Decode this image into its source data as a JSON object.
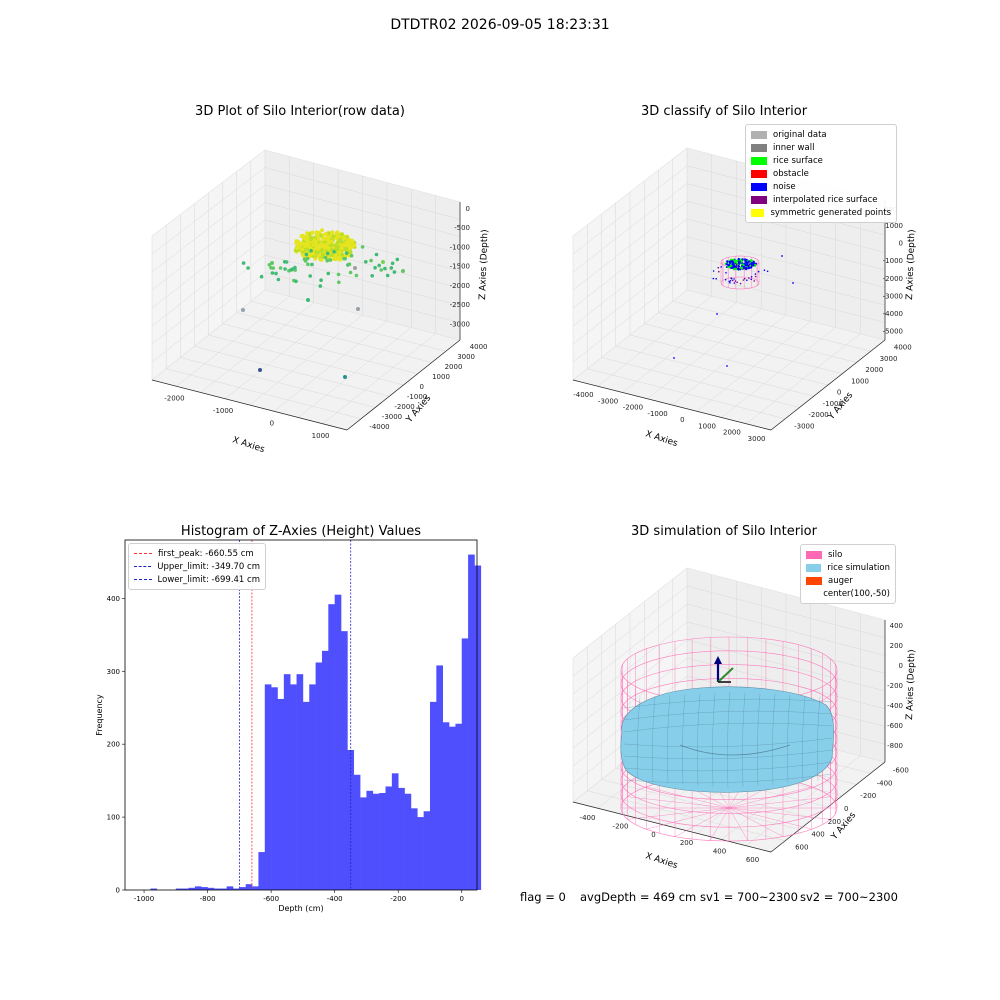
{
  "suptitle": "DTDTR02 2026-09-05 18:23:31",
  "footer": {
    "flag": "flag = 0",
    "avg": "avgDepth = 469 cm",
    "sv1": "sv1 = 700~2300",
    "sv2": "sv2 = 700~2300"
  },
  "colors": {
    "hist_bar": "#4f4ffe",
    "first_peak": "#ff3333",
    "limit": "#2222cc",
    "silo": "#ff69b4",
    "rice_sim": "#87ceeb",
    "auger": "#ff4500"
  },
  "chart_data": [
    {
      "type": "scatter",
      "title": "3D Plot of Silo Interior(row data)",
      "xlabel": "X Axies",
      "ylabel": "Y Axies",
      "zlabel": "Z Axies (Depth)",
      "x_ticks": [
        "-2000",
        "-1000",
        "0",
        "1000"
      ],
      "y_ticks": [
        "-4000",
        "-3000",
        "-2000",
        "-1000",
        "0",
        "1000",
        "2000",
        "3000",
        "4000"
      ],
      "z_ticks": [
        "0",
        "-500",
        "-1000",
        "-1500",
        "-2000",
        "-2500",
        "-3000"
      ],
      "grid": true
    },
    {
      "type": "scatter",
      "title": "3D classify of Silo Interior",
      "xlabel": "X Axies",
      "ylabel": "Y Axies",
      "zlabel": "Z Axies (Depth)",
      "x_ticks": [
        "-4000",
        "-3000",
        "-2000",
        "-1000",
        "0",
        "1000",
        "2000",
        "3000"
      ],
      "y_ticks": [
        "-3000",
        "-2000",
        "-1000",
        "0",
        "1000",
        "2000",
        "3000",
        "4000"
      ],
      "z_ticks": [
        "1000",
        "0",
        "-1000",
        "-2000",
        "-3000",
        "-4000",
        "-5000"
      ],
      "z_top_tick": "000",
      "legend": [
        {
          "label": "original data",
          "color": "#b0b0b0"
        },
        {
          "label": "inner wall",
          "color": "#808080"
        },
        {
          "label": "rice surface",
          "color": "#00ff00"
        },
        {
          "label": "obstacle",
          "color": "#ff0000"
        },
        {
          "label": "noise",
          "color": "#0000ff"
        },
        {
          "label": "interpolated rice surface",
          "color": "#800080"
        },
        {
          "label": "symmetric generated points",
          "color": "#ffff00"
        }
      ],
      "legend_position": "top-right",
      "grid": true
    },
    {
      "type": "bar",
      "title": "Histogram of Z-Axies (Height) Values",
      "xlabel": "Depth (cm)",
      "ylabel": "Frequency",
      "xlim": [
        -1060,
        48
      ],
      "ylim": [
        0,
        480
      ],
      "x_ticks": [
        -1000,
        -800,
        -600,
        -400,
        -200,
        0
      ],
      "y_ticks": [
        0,
        100,
        200,
        300,
        400
      ],
      "bin_start": -1000,
      "bin_width": 20,
      "values": [
        0,
        2,
        0,
        0,
        0,
        2,
        2,
        3,
        5,
        4,
        3,
        2,
        2,
        5,
        2,
        4,
        8,
        5,
        52,
        282,
        278,
        262,
        296,
        282,
        296,
        258,
        282,
        312,
        328,
        392,
        405,
        355,
        192,
        158,
        127,
        136,
        132,
        133,
        142,
        160,
        140,
        132,
        112,
        100,
        108,
        258,
        308,
        230,
        224,
        228,
        345,
        460,
        445
      ],
      "vlines": [
        {
          "label": "first_peak: -660.55 cm",
          "x": -660.55,
          "style": "first_peak"
        },
        {
          "label": "Upper_limit: -349.70 cm",
          "x": -349.7,
          "style": "limit"
        },
        {
          "label": "Lower_limit: -699.41 cm",
          "x": -699.41,
          "style": "limit"
        }
      ],
      "legend_position": "top-left"
    },
    {
      "type": "surface",
      "title": "3D simulation of Silo Interior",
      "xlabel": "X Axies",
      "ylabel": "Y Axies",
      "zlabel": "Z Axies (Depth)",
      "x_ticks": [
        "-400",
        "-200",
        "0",
        "200",
        "400",
        "600"
      ],
      "y_ticks": [
        "-600",
        "-400",
        "-200",
        "0",
        "200",
        "400",
        "600"
      ],
      "z_ticks": [
        "400",
        "200",
        "0",
        "-200",
        "-400",
        "-600",
        "-800"
      ],
      "legend": [
        {
          "label": "silo",
          "color": "#ff69b4"
        },
        {
          "label": "rice simulation",
          "color": "#87ceeb"
        },
        {
          "label": "auger",
          "color": "#ff4500"
        },
        {
          "label": "center(100,-50)",
          "color": ""
        }
      ],
      "legend_position": "top-right"
    }
  ]
}
